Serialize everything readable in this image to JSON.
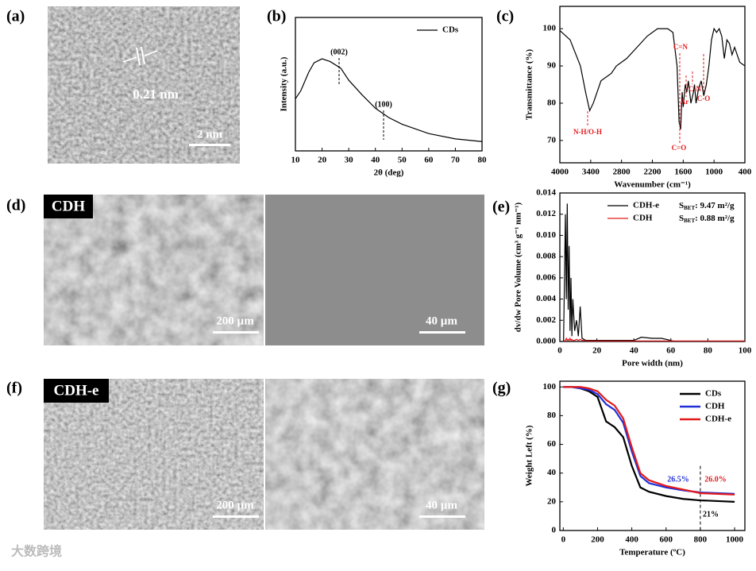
{
  "panel_labels": [
    "(a)",
    "(b)",
    "(c)",
    "(d)",
    "(e)",
    "(f)",
    "(g)"
  ],
  "images": {
    "a": {
      "annotation": "0.21 nm",
      "scale_bar": "2 nm"
    },
    "d": {
      "tag": "CDH",
      "scale_bars": [
        "200 µm",
        "40 µm"
      ]
    },
    "f": {
      "tag": "CDH-e",
      "scale_bars": [
        "200 µm",
        "40 µm"
      ]
    }
  },
  "watermark": "大数跨境",
  "chart_data": [
    {
      "type": "line",
      "xlabel": "2θ (deg)",
      "ylabel": "Intensity (a.u.)",
      "x": [
        10,
        12,
        15,
        17,
        20,
        23,
        27,
        30,
        35,
        40,
        45,
        50,
        60,
        70,
        80
      ],
      "series": [
        {
          "name": "CDs",
          "color": "#000000",
          "values": [
            39,
            45,
            59,
            66,
            69,
            67,
            62,
            53,
            42,
            32,
            25,
            20,
            13,
            9,
            7
          ]
        }
      ],
      "xlim": [
        10,
        80
      ],
      "xticks": [
        10,
        20,
        30,
        40,
        50,
        60,
        70,
        80
      ],
      "ylim": [
        0,
        100
      ],
      "legend": "upper right",
      "annotations": [
        {
          "text": "(002)",
          "color": "#000000"
        },
        {
          "text": "(100)",
          "color": "#000000"
        }
      ]
    },
    {
      "type": "line",
      "xlabel": "Wavenumber (cm⁻¹)",
      "ylabel": "Transmittance (%)",
      "x": [
        4000,
        3800,
        3600,
        3500,
        3420,
        3350,
        3200,
        3000,
        2900,
        2700,
        2500,
        2300,
        2100,
        1900,
        1800,
        1720,
        1680,
        1650,
        1620,
        1600,
        1560,
        1530,
        1500,
        1450,
        1400,
        1380,
        1350,
        1300,
        1250,
        1200,
        1150,
        1100,
        1050,
        1000,
        950,
        900,
        850,
        800,
        750,
        700,
        650,
        600,
        500,
        400
      ],
      "series": [
        {
          "color": "#000000",
          "values": [
            99.5,
            97,
            90,
            83,
            78,
            80,
            86,
            88,
            90,
            92,
            95,
            98,
            100,
            100,
            99,
            90,
            75,
            73,
            83,
            79,
            85,
            83,
            86,
            80,
            83,
            85,
            80,
            84,
            86,
            82,
            85,
            90,
            97,
            100,
            99,
            100,
            98,
            92,
            97,
            96,
            93,
            95,
            91,
            90
          ]
        }
      ],
      "xlim": [
        4000,
        400
      ],
      "xticks": [
        4000,
        3400,
        2800,
        2200,
        1600,
        1000,
        400
      ],
      "ylim": [
        64,
        106
      ],
      "yticks": [
        70,
        80,
        90,
        100
      ],
      "annotations": [
        {
          "text": "N-H/O-H",
          "color": "#e31a1c"
        },
        {
          "text": "C=N",
          "color": "#e31a1c"
        },
        {
          "text": "C=O",
          "color": "#e31a1c"
        },
        {
          "text": "Ar",
          "color": "#e31a1c"
        },
        {
          "text": "C-N",
          "color": "#e31a1c"
        },
        {
          "text": "C-O",
          "color": "#e31a1c"
        }
      ]
    },
    {
      "type": "line",
      "xlabel": "Pore width (nm)",
      "ylabel": "dv/dw Pore Volume (cm³ g⁻¹ nm⁻¹)",
      "x": [
        2,
        3,
        3.5,
        4,
        4.5,
        5,
        5.5,
        6,
        6.5,
        7,
        8,
        9,
        10,
        11,
        12,
        13,
        14,
        16,
        20,
        30,
        40,
        44,
        50,
        55,
        60,
        62,
        70,
        80,
        90,
        100
      ],
      "series": [
        {
          "name": "CDH-e",
          "color": "#000000",
          "values": [
            0,
            0.012,
            0.004,
            0.013,
            0.003,
            0.009,
            0.001,
            0.006,
            0.0005,
            0.004,
            0.001,
            0.002,
            0.0005,
            0.0033,
            0.0003,
            0.0002,
            0.0001,
            0.0001,
            0.0001,
            0.0001,
            0.0001,
            0.0004,
            0.0003,
            0.0003,
            0.0001,
            0,
            null,
            null,
            null,
            null
          ],
          "stats": {
            "symbol": "S",
            "subscript": "BET",
            "text": ": 9.47 m²/g"
          }
        },
        {
          "name": "CDH",
          "color": "#e31a1c",
          "values": [
            0,
            0.0001,
            0.0003,
            0.0001,
            0.0002,
            0.0001,
            0.0003,
            0.0001,
            0.0002,
            0.0001,
            0.0001,
            0.0002,
            0.0001,
            0.0002,
            0.0001,
            0.0001,
            5e-05,
            5e-05,
            5e-05,
            5e-05,
            5e-05,
            5e-05,
            5e-05,
            5e-05,
            5e-05,
            5e-05,
            5e-05,
            5e-05,
            5e-05,
            5e-05
          ],
          "stats": {
            "symbol": "S",
            "subscript": "BET",
            "text": ": 0.88 m²/g"
          }
        }
      ],
      "xlim": [
        0,
        100
      ],
      "xticks": [
        0,
        20,
        40,
        60,
        80,
        100
      ],
      "ylim": [
        0,
        0.014
      ],
      "yticks": [
        {
          "value": 0,
          "label": "0.000"
        },
        {
          "value": 0.002,
          "label": "0.002"
        },
        {
          "value": 0.004,
          "label": "0.004"
        },
        {
          "value": 0.006,
          "label": "0.006"
        },
        {
          "value": 0.008,
          "label": "0.008"
        },
        {
          "value": 0.01,
          "label": "0.010"
        },
        {
          "value": 0.012,
          "label": "0.012"
        },
        {
          "value": 0.014,
          "label": "0.014"
        }
      ],
      "legend": "upper right"
    },
    {
      "type": "line",
      "xlabel": "Temperature (ºC)",
      "ylabel": "Weight Left (%)",
      "x": [
        0,
        50,
        100,
        150,
        200,
        250,
        300,
        350,
        400,
        450,
        500,
        600,
        700,
        800,
        900,
        1000
      ],
      "series": [
        {
          "name": "CDs",
          "color": "#000000",
          "values": [
            100,
            100,
            99,
            97,
            93,
            76,
            72,
            65,
            45,
            30,
            27,
            24,
            22,
            21,
            20.5,
            20
          ]
        },
        {
          "name": "CDH",
          "color": "#1f2fd6",
          "values": [
            100,
            100,
            99,
            98,
            95,
            88,
            84,
            75,
            55,
            38,
            33,
            30,
            28,
            26.5,
            26,
            25.5
          ]
        },
        {
          "name": "CDH-e",
          "color": "#e31a1c",
          "values": [
            100,
            100,
            100,
            99,
            97,
            91,
            87,
            78,
            58,
            40,
            35,
            31,
            28.5,
            26,
            25.5,
            25
          ]
        }
      ],
      "xlim": [
        -20,
        1060
      ],
      "xticks": [
        0,
        200,
        400,
        600,
        800,
        1000
      ],
      "ylim": [
        0,
        104
      ],
      "yticks": [
        0,
        20,
        40,
        60,
        80,
        100
      ],
      "vline": 800,
      "legend": "upper right",
      "annotations": [
        {
          "text": "26.5%",
          "color": "#1f2fd6"
        },
        {
          "text": "26.0%",
          "color": "#e31a1c"
        },
        {
          "text": "21%",
          "color": "#000000"
        }
      ]
    }
  ]
}
